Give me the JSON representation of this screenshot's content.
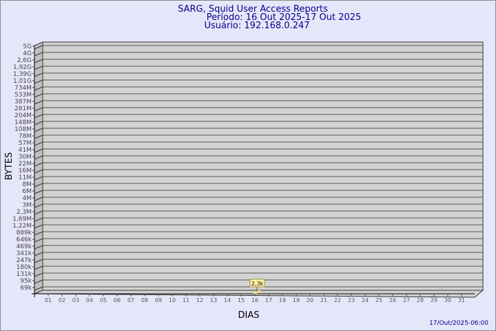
{
  "chart_data": {
    "type": "bar",
    "title": "SARG, Squid User Access Reports",
    "subtitle": "Período: 16 Out 2025-17 Out 2025",
    "subtitle2": "Usuário: 192.168.0.247",
    "xlabel": "DIAS",
    "ylabel": "BYTES",
    "y_scale": "log",
    "y_ticks": [
      "5G",
      "4G",
      "2,6G",
      "1,92G",
      "1,39G",
      "1,01G",
      "734M",
      "533M",
      "387M",
      "281M",
      "204M",
      "148M",
      "108M",
      "78M",
      "57M",
      "41M",
      "30M",
      "22M",
      "16M",
      "11M",
      "8M",
      "6M",
      "4M",
      "3M",
      "2,3M",
      "1,69M",
      "1,22M",
      "889k",
      "646k",
      "469k",
      "341k",
      "247k",
      "180k",
      "131k",
      "95k",
      "69k"
    ],
    "categories": [
      "01",
      "02",
      "03",
      "04",
      "05",
      "06",
      "07",
      "08",
      "09",
      "10",
      "11",
      "12",
      "13",
      "14",
      "15",
      "16",
      "17",
      "18",
      "19",
      "20",
      "21",
      "22",
      "23",
      "24",
      "25",
      "26",
      "27",
      "28",
      "29",
      "30",
      "31"
    ],
    "bars": [
      {
        "day": "16",
        "value": 2300,
        "label": "2,3k"
      }
    ],
    "grid": true,
    "colors": {
      "background": "#e6e6fa",
      "plot": "#d3d3d3",
      "bar": "#ffe27a",
      "title": "#00008b"
    }
  },
  "footer": {
    "timestamp": "17/Out/2025-06:00"
  }
}
